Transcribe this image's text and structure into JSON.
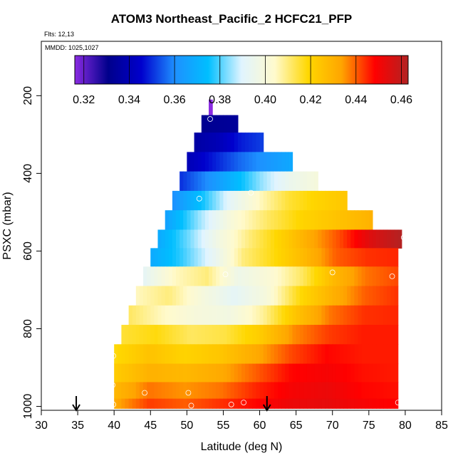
{
  "title": "ATOM3 Northeast_Pacific_2 HCFC21_PFP",
  "flights_label": "Flts: 12,13",
  "mmdd_label": "MMDD: 1025,1027",
  "chart_data": {
    "type": "heatmap",
    "title": "ATOM3 Northeast_Pacific_2 HCFC21_PFP",
    "xlabel": "Latitude (deg N)",
    "ylabel": "PSXC (mbar)",
    "xlim": [
      30,
      85
    ],
    "ylim": [
      1010,
      60
    ],
    "y_axis": "pressure, decreasing upward",
    "xticks": [
      30,
      35,
      40,
      45,
      50,
      55,
      60,
      65,
      70,
      75,
      80,
      85
    ],
    "yticks": [
      200,
      400,
      600,
      800,
      1000
    ],
    "colorbar": {
      "ticks": [
        0.32,
        0.34,
        0.36,
        0.38,
        0.4,
        0.42,
        0.44,
        0.46
      ],
      "range": [
        0.316,
        0.463
      ],
      "colors": [
        "#8a2be2",
        "#00008b",
        "#0000cd",
        "#1e90ff",
        "#00bfff",
        "#e0f4ff",
        "#fffacd",
        "#ffd700",
        "#ffa500",
        "#ff0000",
        "#b22222"
      ]
    },
    "grid_rows": [
      {
        "p": 230,
        "x0": 53.0,
        "x1": 53.5,
        "v": [
          0.316
        ]
      },
      {
        "p": 270,
        "x0": 52.0,
        "x1": 57.0,
        "v": [
          0.332,
          0.333,
          0.334
        ]
      },
      {
        "p": 320,
        "x0": 51.0,
        "x1": 60.5,
        "v": [
          0.336,
          0.34,
          0.348,
          0.352
        ]
      },
      {
        "p": 370,
        "x0": 50.0,
        "x1": 64.5,
        "v": [
          0.34,
          0.348,
          0.356,
          0.362,
          0.368
        ]
      },
      {
        "p": 420,
        "x0": 49.0,
        "x1": 68.0,
        "v": [
          0.35,
          0.36,
          0.372,
          0.385,
          0.395,
          0.4
        ]
      },
      {
        "p": 470,
        "x0": 48.0,
        "x1": 72.0,
        "v": [
          0.36,
          0.375,
          0.392,
          0.405,
          0.415,
          0.42,
          0.424
        ]
      },
      {
        "p": 520,
        "x0": 47.0,
        "x1": 75.5,
        "v": [
          0.365,
          0.385,
          0.402,
          0.412,
          0.42,
          0.425,
          0.43
        ]
      },
      {
        "p": 570,
        "x0": 46.0,
        "x1": 79.5,
        "v": [
          0.368,
          0.382,
          0.398,
          0.41,
          0.42,
          0.432,
          0.442,
          0.455,
          0.463
        ]
      },
      {
        "p": 615,
        "x0": 45.0,
        "x1": 79.0,
        "v": [
          0.368,
          0.378,
          0.392,
          0.41,
          0.418,
          0.428,
          0.44,
          0.444,
          0.445
        ]
      },
      {
        "p": 665,
        "x0": 44.0,
        "x1": 79.0,
        "v": [
          0.392,
          0.405,
          0.41,
          0.396,
          0.402,
          0.412,
          0.428,
          0.438,
          0.442
        ]
      },
      {
        "p": 715,
        "x0": 43.0,
        "x1": 79.0,
        "v": [
          0.405,
          0.41,
          0.4,
          0.392,
          0.4,
          0.418,
          0.43,
          0.44,
          0.444
        ]
      },
      {
        "p": 765,
        "x0": 42.0,
        "x1": 79.0,
        "v": [
          0.412,
          0.405,
          0.4,
          0.398,
          0.408,
          0.425,
          0.438,
          0.444,
          0.445
        ]
      },
      {
        "p": 815,
        "x0": 41.0,
        "x1": 79.0,
        "v": [
          0.415,
          0.418,
          0.412,
          0.414,
          0.422,
          0.436,
          0.443,
          0.446,
          0.446
        ]
      },
      {
        "p": 865,
        "x0": 40.0,
        "x1": 79.0,
        "v": [
          0.418,
          0.425,
          0.42,
          0.424,
          0.432,
          0.442,
          0.448,
          0.446,
          0.446
        ]
      },
      {
        "p": 915,
        "x0": 40.0,
        "x1": 79.0,
        "v": [
          0.422,
          0.43,
          0.428,
          0.432,
          0.44,
          0.448,
          0.45,
          0.447,
          0.446
        ]
      },
      {
        "p": 960,
        "x0": 40.0,
        "x1": 79.0,
        "v": [
          0.428,
          0.438,
          0.435,
          0.438,
          0.445,
          0.45,
          0.452,
          0.448,
          0.447
        ]
      },
      {
        "p": 1000,
        "x0": 40.0,
        "x1": 79.0,
        "v": [
          0.432,
          0.443,
          0.44,
          0.444,
          0.448,
          0.452,
          0.453,
          0.45,
          0.448
        ]
      }
    ],
    "sample_points": [
      {
        "x": 53.2,
        "y": 260
      },
      {
        "x": 51.7,
        "y": 465
      },
      {
        "x": 58.8,
        "y": 450
      },
      {
        "x": 55.3,
        "y": 660
      },
      {
        "x": 70.0,
        "y": 655
      },
      {
        "x": 78.2,
        "y": 665
      },
      {
        "x": 79.8,
        "y": 565
      },
      {
        "x": 39.9,
        "y": 870
      },
      {
        "x": 39.8,
        "y": 945
      },
      {
        "x": 44.2,
        "y": 965
      },
      {
        "x": 50.2,
        "y": 965
      },
      {
        "x": 39.9,
        "y": 995
      },
      {
        "x": 50.6,
        "y": 998
      },
      {
        "x": 56.1,
        "y": 995
      },
      {
        "x": 57.8,
        "y": 990
      },
      {
        "x": 79.0,
        "y": 990
      }
    ],
    "arrows_x": [
      34.8,
      61.0
    ]
  }
}
